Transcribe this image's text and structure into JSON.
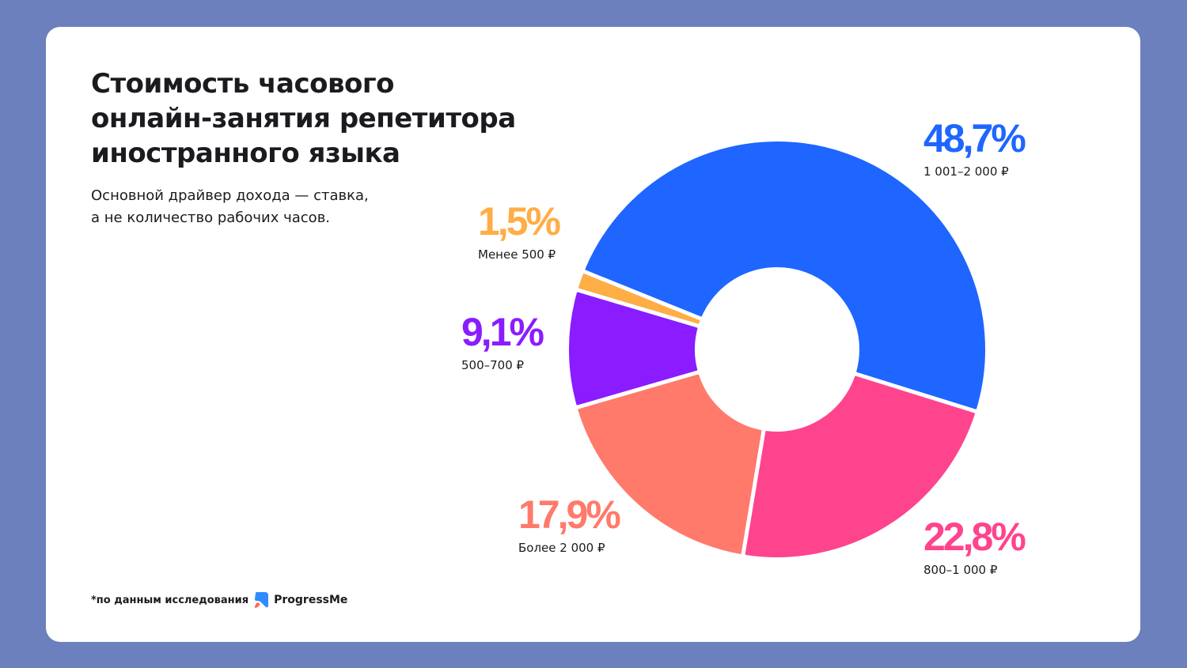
{
  "header": {
    "title_lines": [
      "Стоимость часового",
      "онлайн-занятия репетитора",
      "иностранного языка"
    ],
    "subtitle_lines": [
      "Основной драйвер дохода — ставка,",
      "а не количество рабочих часов."
    ]
  },
  "footer": {
    "source_text": "*по данным исследования",
    "brand": "ProgressMe",
    "logo_icon": "progressme-logo-icon"
  },
  "colors": {
    "background": "#6b80bd",
    "card": "#ffffff",
    "text": "#1b1b1f"
  },
  "chart_data": {
    "type": "pie",
    "variant": "donut",
    "title": "Стоимость часового онлайн-занятия репетитора иностранного языка",
    "subtitle": "Основной драйвер дохода — ставка, а не количество рабочих часов.",
    "unit": "%",
    "direction": "clockwise",
    "slices": [
      {
        "label": "1 001–2 000 ₽",
        "value": 48.7,
        "value_label": "48,7%",
        "color": "#1e66ff",
        "label_position": "top-right"
      },
      {
        "label": "800–1 000 ₽",
        "value": 22.8,
        "value_label": "22,8%",
        "color": "#ff448e",
        "label_position": "bottom-right"
      },
      {
        "label": "Более 2 000 ₽",
        "value": 17.9,
        "value_label": "17,9%",
        "color": "#ff7a6b",
        "label_position": "bottom-left"
      },
      {
        "label": "500–700 ₽",
        "value": 9.1,
        "value_label": "9,1%",
        "color": "#8a1cff",
        "label_position": "left"
      },
      {
        "label": "Менее 500 ₽",
        "value": 1.5,
        "value_label": "1,5%",
        "color": "#ffad45",
        "label_position": "upper-left"
      }
    ]
  }
}
